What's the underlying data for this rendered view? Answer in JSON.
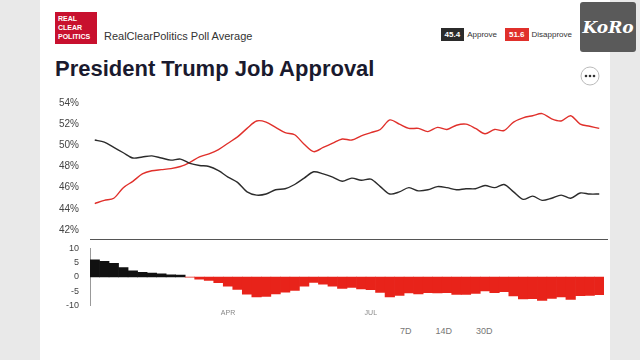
{
  "header": {
    "logo": "REAL CLEAR POLITICS",
    "source": "RealClearPolitics Poll Average",
    "overlay": "KoRo"
  },
  "buttons": [
    "7D",
    "14D",
    "30D"
  ],
  "chart_data": [
    {
      "type": "line",
      "title": "President Trump Job Approval",
      "categories": [
        null,
        null,
        null,
        null,
        null,
        null,
        null,
        null,
        null,
        null,
        null,
        null,
        null,
        null,
        "APR",
        null,
        null,
        null,
        null,
        null,
        null,
        null,
        null,
        null,
        null,
        null,
        null,
        null,
        null,
        "JUL",
        null,
        null,
        null,
        null,
        null,
        null,
        null,
        null,
        null,
        null,
        null,
        null,
        null,
        null,
        null,
        null,
        null,
        null,
        null,
        null,
        null,
        null,
        null,
        null
      ],
      "series": [
        {
          "name": "Approve",
          "color": "#2b2b2b",
          "latest": 45.4,
          "values": [
            50.5,
            50.3,
            49.8,
            49.3,
            48.8,
            48.9,
            49.0,
            48.8,
            48.6,
            48.7,
            48.3,
            48.1,
            48.0,
            47.6,
            47.0,
            46.5,
            45.6,
            45.3,
            45.4,
            45.8,
            45.9,
            46.3,
            46.9,
            47.5,
            47.3,
            47.0,
            46.6,
            46.9,
            46.7,
            46.8,
            46.1,
            45.4,
            45.6,
            46.0,
            45.7,
            45.8,
            46.1,
            46.0,
            45.8,
            45.9,
            45.9,
            46.2,
            46.0,
            46.3,
            45.6,
            44.9,
            45.2,
            44.8,
            45.0,
            45.3,
            45.0,
            45.5,
            45.4,
            45.4
          ]
        },
        {
          "name": "Disapprove",
          "color": "#e0302b",
          "latest": 51.6,
          "values": [
            44.5,
            44.8,
            45.0,
            46.0,
            46.6,
            47.3,
            47.6,
            47.7,
            47.8,
            48.0,
            48.4,
            48.9,
            49.2,
            49.6,
            50.2,
            50.8,
            51.6,
            52.3,
            52.2,
            51.7,
            51.2,
            51.0,
            50.1,
            49.4,
            49.8,
            50.2,
            50.6,
            50.5,
            50.9,
            51.2,
            51.5,
            52.4,
            52.0,
            51.6,
            51.6,
            51.3,
            51.7,
            51.5,
            51.9,
            52.0,
            51.6,
            51.1,
            51.5,
            51.4,
            52.2,
            52.6,
            52.8,
            53.0,
            52.5,
            52.3,
            52.8,
            52.0,
            51.8,
            51.6
          ]
        }
      ],
      "ylim": [
        42,
        54
      ],
      "yticks": [
        {
          "value": 42,
          "label": "42%"
        },
        {
          "value": 44,
          "label": "44%"
        },
        {
          "value": 46,
          "label": "46%"
        },
        {
          "value": 48,
          "label": "48%"
        },
        {
          "value": 50,
          "label": "50%"
        },
        {
          "value": 52,
          "label": "52%"
        },
        {
          "value": 54,
          "label": "54%"
        }
      ],
      "grid": false,
      "legend": "top-right",
      "tick_labels": "y"
    },
    {
      "type": "bar",
      "categories": [
        null,
        null,
        null,
        null,
        null,
        null,
        null,
        null,
        null,
        null,
        null,
        null,
        null,
        null,
        "APR",
        null,
        null,
        null,
        null,
        null,
        null,
        null,
        null,
        null,
        null,
        null,
        null,
        null,
        null,
        "JUL",
        null,
        null,
        null,
        null,
        null,
        null,
        null,
        null,
        null,
        null,
        null,
        null,
        null,
        null,
        null,
        null,
        null,
        null,
        null,
        null,
        null,
        null,
        null,
        null
      ],
      "values": [
        6.0,
        5.5,
        4.8,
        3.3,
        2.2,
        1.6,
        1.4,
        1.1,
        0.8,
        0.7,
        -0.1,
        -0.8,
        -1.2,
        -2.0,
        -3.2,
        -4.3,
        -6.0,
        -7.0,
        -6.8,
        -5.9,
        -5.3,
        -4.7,
        -3.2,
        -1.9,
        -2.5,
        -3.2,
        -4.0,
        -3.6,
        -4.2,
        -4.4,
        -5.4,
        -7.0,
        -6.4,
        -5.6,
        -5.9,
        -5.5,
        -5.6,
        -5.5,
        -6.1,
        -6.1,
        -5.7,
        -4.9,
        -5.5,
        -5.1,
        -6.6,
        -7.7,
        -7.6,
        -8.2,
        -7.5,
        -7.0,
        -7.8,
        -6.5,
        -6.4,
        -6.2
      ],
      "colors": [
        "#111111",
        "#111111",
        "#111111",
        "#111111",
        "#111111",
        "#111111",
        "#111111",
        "#111111",
        "#111111",
        "#111111",
        "#e8231a",
        "#e8231a",
        "#e8231a",
        "#e8231a",
        "#e8231a",
        "#e8231a",
        "#e8231a",
        "#e8231a",
        "#e8231a",
        "#e8231a",
        "#e8231a",
        "#e8231a",
        "#e8231a",
        "#e8231a",
        "#e8231a",
        "#e8231a",
        "#e8231a",
        "#e8231a",
        "#e8231a",
        "#e8231a",
        "#e8231a",
        "#e8231a",
        "#e8231a",
        "#e8231a",
        "#e8231a",
        "#e8231a",
        "#e8231a",
        "#e8231a",
        "#e8231a",
        "#e8231a",
        "#e8231a",
        "#e8231a",
        "#e8231a",
        "#e8231a",
        "#e8231a",
        "#e8231a",
        "#e8231a",
        "#e8231a",
        "#e8231a",
        "#e8231a",
        "#e8231a",
        "#e8231a",
        "#e8231a",
        "#e8231a"
      ],
      "ylim": [
        -10,
        10
      ],
      "yticks": [
        -10,
        -5,
        0,
        5,
        10
      ],
      "grid": false
    }
  ]
}
